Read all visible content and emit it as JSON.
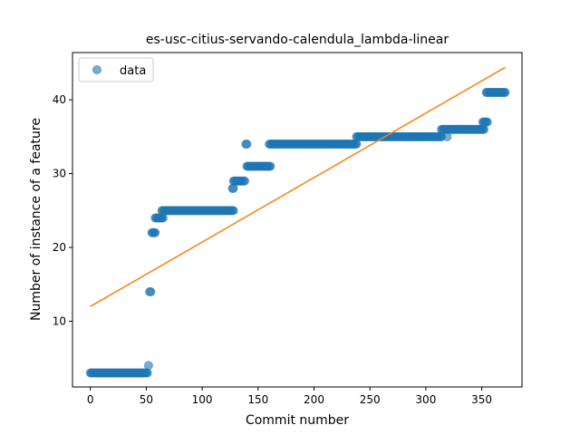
{
  "chart_data": {
    "type": "scatter",
    "title": "es-usc-citius-servando-calendula_lambda-linear",
    "xlabel": "Commit number",
    "ylabel": "Number of instance of a feature",
    "xlim": [
      -16,
      386
    ],
    "ylim": [
      1.1,
      46.4
    ],
    "xticks": [
      0,
      50,
      100,
      150,
      200,
      250,
      300,
      350
    ],
    "yticks": [
      10,
      20,
      30,
      40
    ],
    "legend": {
      "placement": "top-left",
      "entries": [
        "data"
      ]
    },
    "grid": false,
    "colors": {
      "points": "#1f77b4",
      "fit_line": "#ff7f0e"
    },
    "series": [
      {
        "name": "data",
        "kind": "scatter",
        "segments": [
          {
            "x_start": 0,
            "x_end": 51,
            "y": 3
          },
          {
            "x_start": 52,
            "x_end": 52,
            "y": 4
          },
          {
            "x_start": 53,
            "x_end": 54,
            "y": 14
          },
          {
            "x_start": 55,
            "x_end": 58,
            "y": 22
          },
          {
            "x_start": 58,
            "x_end": 65,
            "y": 24
          },
          {
            "x_start": 64,
            "x_end": 128,
            "y": 25
          },
          {
            "x_start": 127,
            "x_end": 128,
            "y": 28
          },
          {
            "x_start": 128,
            "x_end": 138,
            "y": 29
          },
          {
            "x_start": 139,
            "x_end": 140,
            "y": 34
          },
          {
            "x_start": 140,
            "x_end": 161,
            "y": 31
          },
          {
            "x_start": 160,
            "x_end": 238,
            "y": 34
          },
          {
            "x_start": 238,
            "x_end": 314,
            "y": 35
          },
          {
            "x_start": 319,
            "x_end": 319,
            "y": 35
          },
          {
            "x_start": 314,
            "x_end": 352,
            "y": 36
          },
          {
            "x_start": 351,
            "x_end": 355,
            "y": 37
          },
          {
            "x_start": 354,
            "x_end": 371,
            "y": 41
          }
        ]
      },
      {
        "name": "",
        "kind": "line",
        "x": [
          0,
          371
        ],
        "y": [
          12.0,
          44.4
        ]
      }
    ]
  }
}
